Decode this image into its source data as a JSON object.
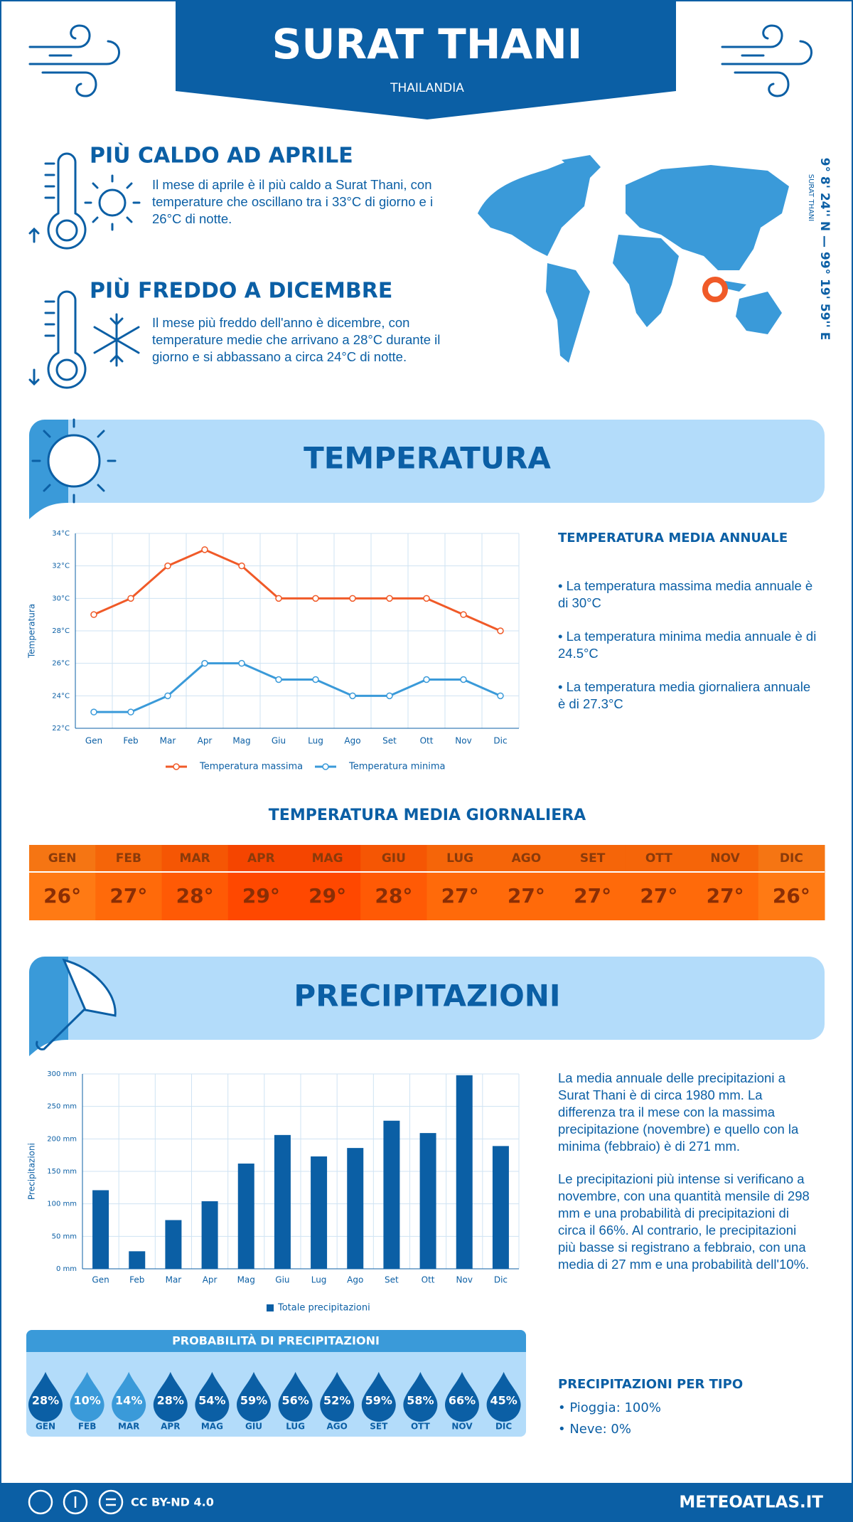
{
  "header": {
    "title": "SURAT THANI",
    "subtitle": "THAILANDIA"
  },
  "coordinates": {
    "text": "9° 8' 24'' N — 99° 19' 59'' E",
    "place": "SURAT THANI"
  },
  "highlights": [
    {
      "title": "PIÙ CALDO AD APRILE",
      "text": "Il mese di aprile è il più caldo a Surat Thani, con temperature che oscillano tra i 33°C di giorno e i 26°C di notte."
    },
    {
      "title": "PIÙ FREDDO A DICEMBRE",
      "text": "Il mese più freddo dell'anno è dicembre, con temperature medie che arrivano a 28°C durante il giorno e si abbassano a circa 24°C di notte."
    }
  ],
  "temperature": {
    "title": "TEMPERATURA",
    "annual_title": "TEMPERATURA MEDIA ANNUALE",
    "annual_points": [
      "• La temperatura massima media annuale è di 30°C",
      "• La temperatura minima media annuale è di 24.5°C",
      "• La temperatura media giornaliera annuale è di 27.3°C"
    ],
    "daily_title": "TEMPERATURA MEDIA GIORNALIERA",
    "daily_months": [
      "GEN",
      "FEB",
      "MAR",
      "APR",
      "MAG",
      "GIU",
      "LUG",
      "AGO",
      "SET",
      "OTT",
      "NOV",
      "DIC"
    ],
    "daily_values": [
      26,
      27,
      28,
      29,
      29,
      28,
      27,
      27,
      27,
      27,
      27,
      26
    ],
    "daily_value_labels": [
      "26°",
      "27°",
      "28°",
      "29°",
      "29°",
      "28°",
      "27°",
      "27°",
      "27°",
      "27°",
      "27°",
      "26°"
    ]
  },
  "precipitation": {
    "title": "PRECIPITAZIONI",
    "paragraphs": [
      "La media annuale delle precipitazioni a Surat Thani è di circa 1980 mm. La differenza tra il mese con la massima precipitazione (novembre) e quello con la minima (febbraio) è di 271 mm.",
      "Le precipitazioni più intense si verificano a novembre, con una quantità mensile di 298 mm e una probabilità di precipitazioni di circa il 66%. Al contrario, le precipitazioni più basse si registrano a febbraio, con una media di 27 mm e una probabilità dell'10%."
    ],
    "probability_title": "PROBABILITÀ DI PRECIPITAZIONI",
    "probability_months": [
      "GEN",
      "FEB",
      "MAR",
      "APR",
      "MAG",
      "GIU",
      "LUG",
      "AGO",
      "SET",
      "OTT",
      "NOV",
      "DIC"
    ],
    "probability_values": [
      28,
      10,
      14,
      28,
      54,
      59,
      56,
      52,
      59,
      58,
      66,
      45
    ],
    "probability_value_labels": [
      "28%",
      "10%",
      "14%",
      "28%",
      "54%",
      "59%",
      "56%",
      "52%",
      "59%",
      "58%",
      "66%",
      "45%"
    ],
    "type_title": "PRECIPITAZIONI PER TIPO",
    "type_items": [
      "• Pioggia: 100%",
      "• Neve: 0%"
    ]
  },
  "chart_data": [
    {
      "type": "line",
      "y_label": "Temperatura",
      "categories": [
        "Gen",
        "Feb",
        "Mar",
        "Apr",
        "Mag",
        "Giu",
        "Lug",
        "Ago",
        "Set",
        "Ott",
        "Nov",
        "Dic"
      ],
      "series": [
        {
          "name": "Temperatura massima",
          "color": "#f05a28",
          "values": [
            29,
            30,
            32,
            33,
            32,
            30,
            30,
            30,
            30,
            30,
            29,
            28
          ]
        },
        {
          "name": "Temperatura minima",
          "color": "#3a9ad9",
          "values": [
            23,
            23,
            24,
            26,
            26,
            25,
            25,
            24,
            24,
            25,
            25,
            24
          ]
        }
      ],
      "ylim": [
        22,
        34
      ],
      "yticks": [
        {
          "value": 22,
          "label": "22°C"
        },
        {
          "value": 24,
          "label": "24°C"
        },
        {
          "value": 26,
          "label": "26°C"
        },
        {
          "value": 28,
          "label": "28°C"
        },
        {
          "value": 30,
          "label": "30°C"
        },
        {
          "value": 32,
          "label": "32°C"
        },
        {
          "value": 34,
          "label": "34°C"
        }
      ],
      "grid": true
    },
    {
      "type": "bar",
      "y_label": "Precipitazioni",
      "categories": [
        "Gen",
        "Feb",
        "Mar",
        "Apr",
        "Mag",
        "Giu",
        "Lug",
        "Ago",
        "Set",
        "Ott",
        "Nov",
        "Dic"
      ],
      "series": [
        {
          "name": "Totale precipitazioni",
          "color": "#0b5fa5",
          "values": [
            121,
            27,
            75,
            104,
            162,
            206,
            173,
            186,
            228,
            209,
            298,
            189
          ]
        }
      ],
      "ylim": [
        0,
        300
      ],
      "yticks": [
        {
          "value": 0,
          "label": "0 mm"
        },
        {
          "value": 50,
          "label": "50 mm"
        },
        {
          "value": 100,
          "label": "100 mm"
        },
        {
          "value": 150,
          "label": "150 mm"
        },
        {
          "value": 200,
          "label": "200 mm"
        },
        {
          "value": 250,
          "label": "250 mm"
        },
        {
          "value": 300,
          "label": "300 mm"
        }
      ],
      "grid": true
    }
  ],
  "footer": {
    "license": "CC BY-ND 4.0",
    "site": "METEOATLAS.IT"
  }
}
